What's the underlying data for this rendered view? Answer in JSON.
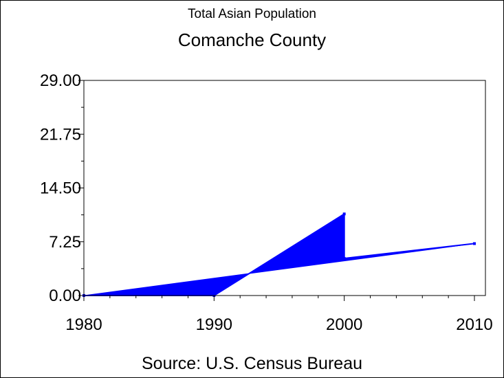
{
  "chart_data": {
    "type": "area",
    "title": "Total Asian Population",
    "subtitle": "Comanche County",
    "source": "Source: U.S. Census Bureau",
    "xlabel": "",
    "ylabel": "",
    "x": [
      1980,
      1990,
      2000,
      2000,
      2010
    ],
    "series": [
      {
        "values": [
          0,
          0,
          11,
          5,
          7
        ]
      }
    ],
    "xlim": [
      1980,
      2010
    ],
    "ylim": [
      0,
      29
    ],
    "x_ticks": [
      "1980",
      "1990",
      "2000",
      "2010"
    ],
    "y_ticks": [
      "0.00",
      "7.25",
      "14.50",
      "21.75",
      "29.00"
    ],
    "grid": false,
    "legend": "none",
    "colors": {
      "series": "#0000ff",
      "axis": "#000000",
      "background": "#ffffff"
    }
  }
}
